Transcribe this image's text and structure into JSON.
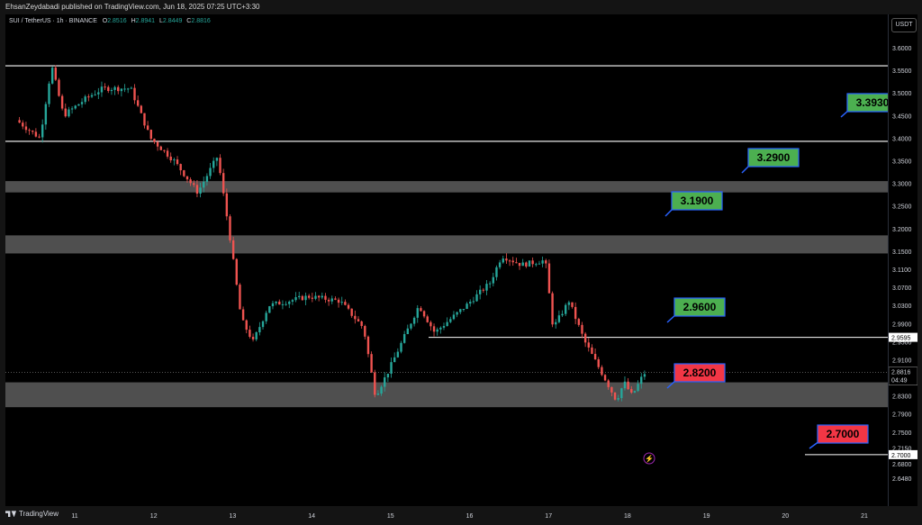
{
  "header": {
    "publisher": "EhsanZeydabadi published on TradingView.com, Jun 18, 2025 07:25 UTC+3:30"
  },
  "legend": {
    "symbol": "SUI / TetherUS · 1h · BINANCE",
    "open_key": "O",
    "open": "2.8516",
    "high_key": "H",
    "high": "2.8941",
    "low_key": "L",
    "low": "2.8449",
    "close_key": "C",
    "close": "2.8816"
  },
  "axis": {
    "currency": "USDT",
    "price_labels": [
      "3.6000",
      "3.5500",
      "3.5000",
      "3.4500",
      "3.4000",
      "3.3500",
      "3.3000",
      "3.2500",
      "3.2000",
      "3.1500",
      "3.1100",
      "3.0700",
      "3.0300",
      "2.9900",
      "2.9500",
      "2.9100",
      "2.8700",
      "2.8300",
      "2.7900",
      "2.7500",
      "2.7150",
      "2.6800",
      "2.6480"
    ],
    "current_price": "2.8816",
    "countdown": "04:49",
    "marker_2960": "2.9595",
    "marker_2700": "2.7000",
    "time_labels": [
      "11",
      "12",
      "13",
      "14",
      "15",
      "16",
      "17",
      "18",
      "19",
      "20",
      "21"
    ]
  },
  "targets": [
    {
      "label": "3.3930",
      "color": "#4caf50"
    },
    {
      "label": "3.2900",
      "color": "#4caf50"
    },
    {
      "label": "3.1900",
      "color": "#4caf50"
    },
    {
      "label": "2.9600",
      "color": "#4caf50"
    },
    {
      "label": "2.8200",
      "color": "#f23645"
    },
    {
      "label": "2.7000",
      "color": "#f23645"
    }
  ],
  "footer": {
    "brand": "TradingView"
  },
  "colors": {
    "up": "#26a69a",
    "down": "#ef5350",
    "zone": "#5d5d5d",
    "line": "#ffffff"
  },
  "chart_data": {
    "type": "candlestick",
    "symbol": "SUI / TetherUS",
    "interval": "1h",
    "exchange": "BINANCE",
    "ylim": [
      2.63,
      3.62
    ],
    "x_ticks": [
      "11",
      "12",
      "13",
      "14",
      "15",
      "16",
      "17",
      "18",
      "19",
      "20",
      "21"
    ],
    "horizontal_lines": [
      3.56,
      3.393,
      2.9595,
      2.7
    ],
    "zones": [
      [
        3.28,
        3.305
      ],
      [
        3.145,
        3.185
      ],
      [
        2.805,
        2.86
      ]
    ],
    "target_levels": [
      3.393,
      3.29,
      3.19,
      2.96,
      2.82,
      2.7
    ],
    "last_close": 2.8816
  }
}
